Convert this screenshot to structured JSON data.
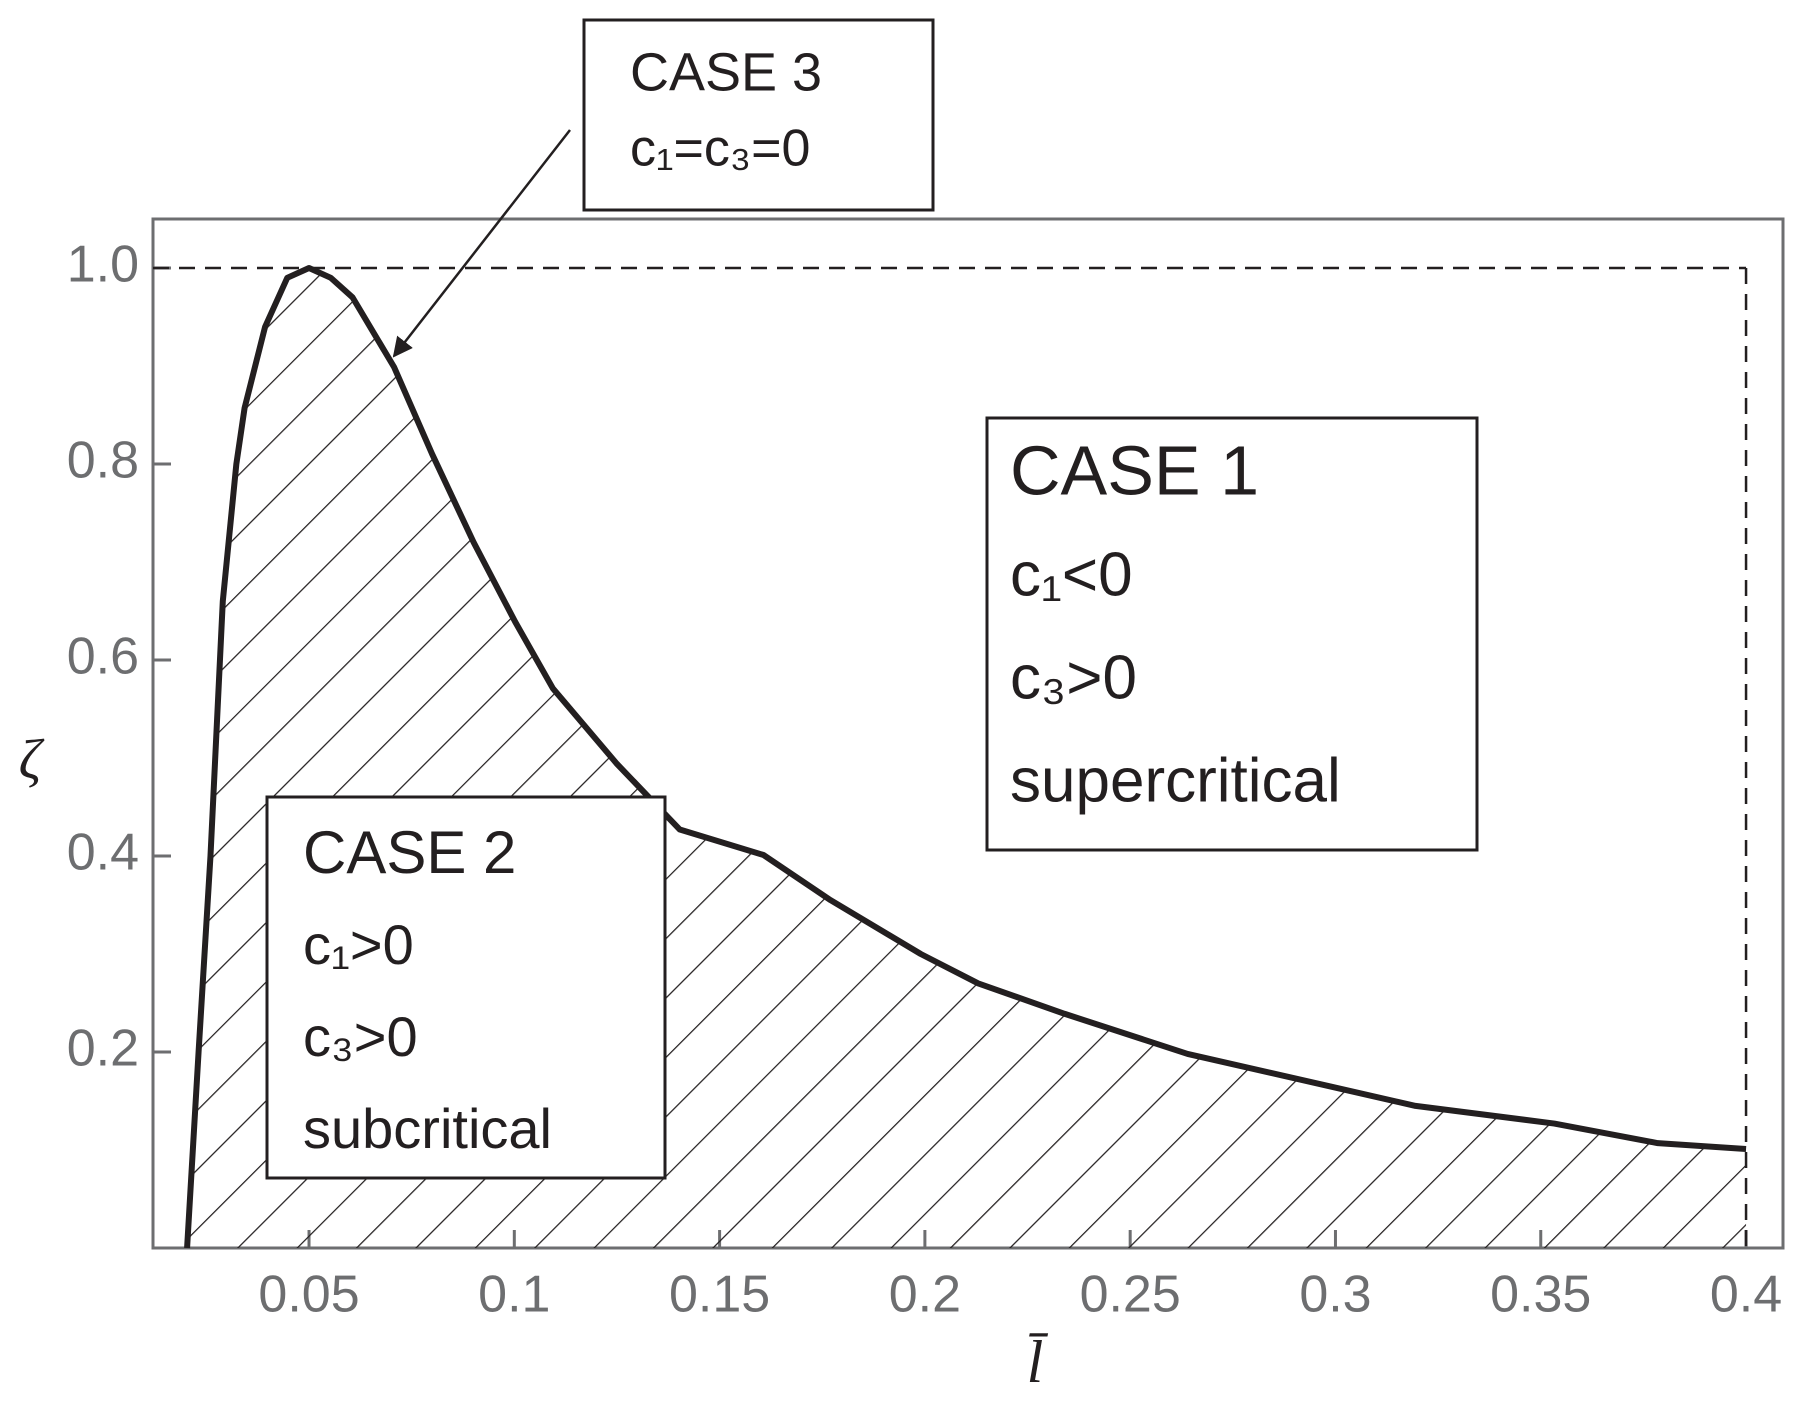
{
  "chart_data": {
    "type": "area",
    "x_label": "l̄",
    "y_label": "ζ",
    "x": [
      0.0203,
      0.0231,
      0.026,
      0.029,
      0.0323,
      0.0343,
      0.0393,
      0.0447,
      0.05,
      0.0553,
      0.0606,
      0.0707,
      0.08,
      0.0901,
      0.1002,
      0.1094,
      0.125,
      0.1403,
      0.1607,
      0.177,
      0.199,
      0.213,
      0.234,
      0.264,
      0.2986,
      0.3195,
      0.3533,
      0.3785,
      0.4
    ],
    "series": [
      {
        "color": "#231f20",
        "hatch": true,
        "values": [
          0,
          0.2,
          0.4,
          0.66,
          0.8,
          0.857,
          0.94,
          0.99,
          1.0,
          0.99,
          0.97,
          0.899,
          0.81,
          0.72,
          0.639,
          0.571,
          0.494,
          0.427,
          0.401,
          0.355,
          0.3,
          0.27,
          0.239,
          0.198,
          0.165,
          0.145,
          0.127,
          0.107,
          0.101
        ]
      }
    ],
    "reference_lines": {
      "x": 0.4,
      "y": 1.0
    },
    "xlim": [
      0.012,
      0.409
    ],
    "ylim": [
      0,
      1.05
    ],
    "xticks": [
      0.05,
      0.1,
      0.15,
      0.2,
      0.25,
      0.3,
      0.35,
      0.4
    ],
    "yticks": [
      0.2,
      0.4,
      0.6,
      0.8,
      {
        "value": 1,
        "label": "1.0"
      }
    ],
    "annotations": [
      {
        "lines": [
          "CASE 3",
          "c₁=c₃=0"
        ]
      },
      {
        "lines": [
          "CASE 1",
          "c₁<0",
          "c₃>0",
          "supercritical"
        ]
      },
      {
        "lines": [
          "CASE 2",
          "c₁>0",
          "c₃>0",
          "subcritical"
        ]
      }
    ]
  }
}
